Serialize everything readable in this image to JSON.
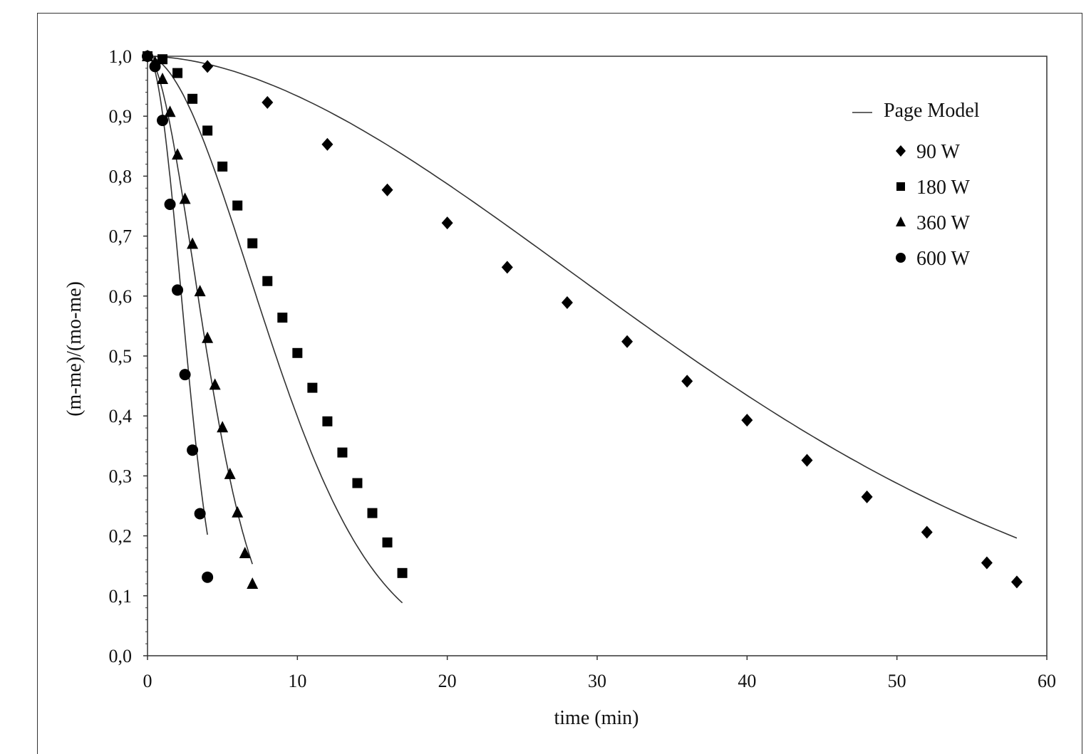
{
  "chart_data": {
    "type": "scatter",
    "title": "",
    "xlabel": "time (min)",
    "ylabel": "(m-me)/(mo-me)",
    "xlim": [
      0,
      60
    ],
    "ylim": [
      0,
      1.0
    ],
    "x_ticks": [
      "0",
      "10",
      "20",
      "30",
      "40",
      "50",
      "60"
    ],
    "y_ticks": [
      "0,0",
      "0,1",
      "0,2",
      "0,3",
      "0,4",
      "0,5",
      "0,6",
      "0,7",
      "0,8",
      "0,9",
      "1,0"
    ],
    "grid": false,
    "legend_position": "top-right",
    "legend": {
      "model_label": "Page Model",
      "entries": [
        "90 W",
        "180 W",
        "360 W",
        "600 W"
      ]
    },
    "series": [
      {
        "name": "90 W",
        "marker": "diamond",
        "x": [
          0,
          4,
          8,
          12,
          16,
          20,
          24,
          28,
          32,
          36,
          40,
          44,
          48,
          52,
          56,
          58
        ],
        "y": [
          1.0,
          0.983,
          0.923,
          0.853,
          0.777,
          0.722,
          0.648,
          0.589,
          0.524,
          0.458,
          0.393,
          0.326,
          0.265,
          0.206,
          0.155,
          0.123
        ],
        "model": {
          "k": 0.00109,
          "n": 1.8,
          "x_max": 58
        }
      },
      {
        "name": "180 W",
        "marker": "square",
        "x": [
          0,
          1,
          2,
          3,
          4,
          5,
          6,
          7,
          8,
          9,
          10,
          11,
          12,
          13,
          14,
          15,
          16,
          17
        ],
        "y": [
          1.0,
          0.995,
          0.972,
          0.929,
          0.876,
          0.816,
          0.751,
          0.688,
          0.625,
          0.564,
          0.505,
          0.447,
          0.391,
          0.339,
          0.288,
          0.238,
          0.189,
          0.138
        ],
        "model": {
          "k": 0.0136,
          "n": 1.83,
          "x_max": 17
        }
      },
      {
        "name": "360 W",
        "marker": "triangle",
        "x": [
          0,
          0.5,
          1,
          1.5,
          2,
          2.5,
          3,
          3.5,
          4,
          4.5,
          5,
          5.5,
          6,
          6.5,
          7
        ],
        "y": [
          1.0,
          0.99,
          0.962,
          0.907,
          0.836,
          0.762,
          0.687,
          0.608,
          0.53,
          0.452,
          0.381,
          0.303,
          0.239,
          0.171,
          0.12
        ],
        "model": {
          "k": 0.0588,
          "n": 1.78,
          "x_max": 7
        }
      },
      {
        "name": "600 W",
        "marker": "circle",
        "x": [
          0,
          0.5,
          1,
          1.5,
          2,
          2.5,
          3,
          3.5,
          4
        ],
        "y": [
          1.0,
          0.983,
          0.893,
          0.753,
          0.61,
          0.469,
          0.343,
          0.237,
          0.131
        ],
        "model": {
          "k": 0.1,
          "n": 2.0,
          "x_max": 4
        }
      }
    ]
  }
}
